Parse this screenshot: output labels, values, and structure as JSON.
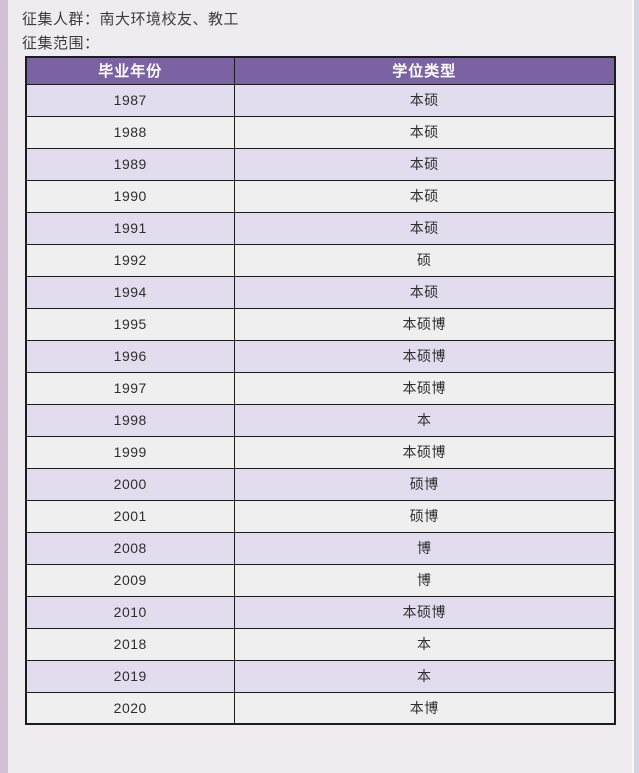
{
  "page": {
    "colors": {
      "background": "#eeecf1",
      "left_strip": "#cfc0d4",
      "right_strip": "#d8d5e2",
      "header_bg": "#7a62a3",
      "header_text": "#ffffff",
      "row_alt_bg": "#e1ddee",
      "row_plain_bg": "#efeff0",
      "border": "#1c1c1c",
      "title_text": "#3b3b3b",
      "cell_text": "#2e2e2e"
    }
  },
  "header": {
    "line1": "征集人群：南大环境校友、教工",
    "line2": "征集范围："
  },
  "table": {
    "columns": [
      "毕业年份",
      "学位类型"
    ],
    "rows": [
      {
        "year": "1987",
        "degree": "本硕"
      },
      {
        "year": "1988",
        "degree": "本硕"
      },
      {
        "year": "1989",
        "degree": "本硕"
      },
      {
        "year": "1990",
        "degree": "本硕"
      },
      {
        "year": "1991",
        "degree": "本硕"
      },
      {
        "year": "1992",
        "degree": "硕"
      },
      {
        "year": "1994",
        "degree": "本硕"
      },
      {
        "year": "1995",
        "degree": "本硕博"
      },
      {
        "year": "1996",
        "degree": "本硕博"
      },
      {
        "year": "1997",
        "degree": "本硕博"
      },
      {
        "year": "1998",
        "degree": "本"
      },
      {
        "year": "1999",
        "degree": "本硕博"
      },
      {
        "year": "2000",
        "degree": "硕博"
      },
      {
        "year": "2001",
        "degree": "硕博"
      },
      {
        "year": "2008",
        "degree": "博"
      },
      {
        "year": "2009",
        "degree": "博"
      },
      {
        "year": "2010",
        "degree": "本硕博"
      },
      {
        "year": "2018",
        "degree": "本"
      },
      {
        "year": "2019",
        "degree": "本"
      },
      {
        "year": "2020",
        "degree": "本博"
      }
    ]
  }
}
